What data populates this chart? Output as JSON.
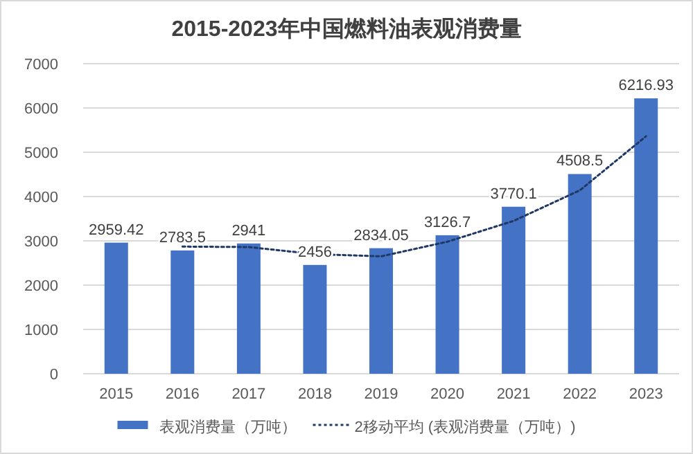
{
  "chart_data": {
    "type": "bar",
    "title": "2015-2023年中国燃料油表观消费量",
    "categories": [
      "2015",
      "2016",
      "2017",
      "2018",
      "2019",
      "2020",
      "2021",
      "2022",
      "2023"
    ],
    "series": [
      {
        "name": "表观消费量（万吨）",
        "color": "#4472c4",
        "values": [
          2959.42,
          2783.5,
          2941,
          2456,
          2834.05,
          3126.7,
          3770.1,
          4508.5,
          6216.93
        ],
        "value_labels": [
          "2959.42",
          "2783.5",
          "2941",
          "2456",
          "2834.05",
          "3126.7",
          "3770.1",
          "4508.5",
          "6216.93"
        ]
      },
      {
        "name": "2移动平均 (表观消费量（万吨）)",
        "type": "line",
        "color": "#203864",
        "line_style": "dotted",
        "values": [
          null,
          2870,
          2860,
          2700,
          2650,
          2980,
          3450,
          4140,
          5360
        ]
      }
    ],
    "ylim": [
      0,
      7000
    ],
    "yticks": [
      0,
      1000,
      2000,
      3000,
      4000,
      5000,
      6000,
      7000
    ],
    "grid": "y",
    "legend": "bottom"
  }
}
